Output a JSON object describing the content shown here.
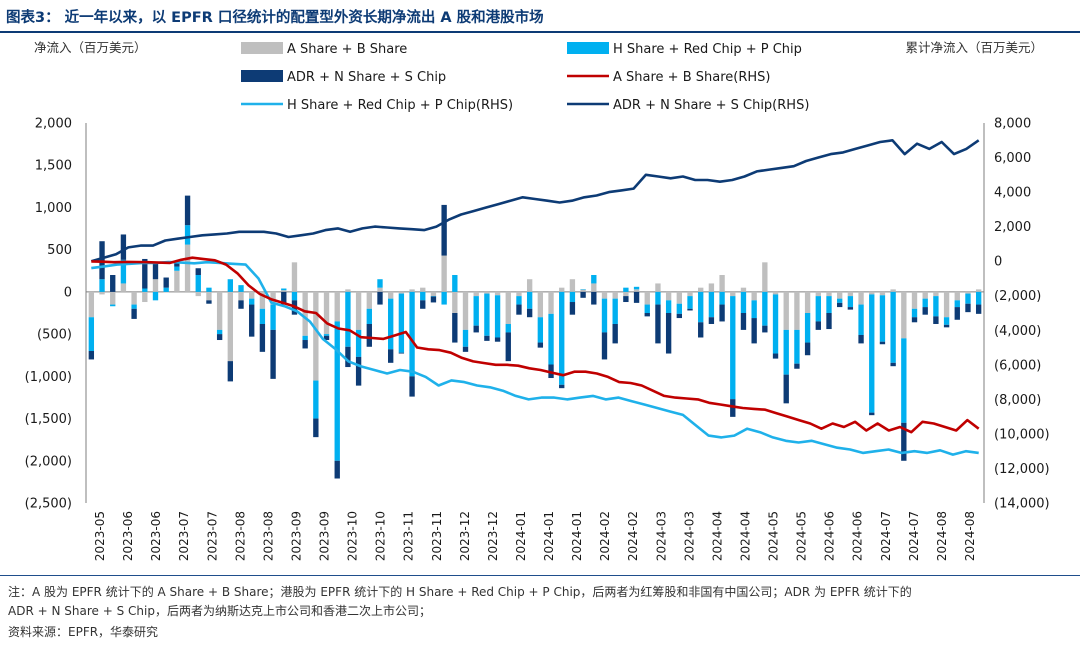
{
  "title": "图表3： 近一年以来，以 EPFR 口径统计的配置型外资长期净流出 A 股和港股市场",
  "footnote_line1": "注：A 股为 EPFR 统计下的 A Share + B Share；港股为 EPFR 统计下的 H Share + Red Chip + P Chip，后两者为红筹股和非国有中国公司；ADR 为 EPFR 统计下的",
  "footnote_line2": "ADR + N Share + S Chip，后两者为纳斯达克上市公司和香港二次上市公司；",
  "source": "资料来源：EPFR，华泰研究",
  "chart_data": {
    "type": "bar+line",
    "ylabel": "净流入（百万美元）",
    "y2label": "累计净流入（百万美元）",
    "ylim": [
      -2500,
      2000
    ],
    "y2lim": [
      -14000,
      8000
    ],
    "yticks": [
      "2,000",
      "1,500",
      "1,000",
      "500",
      "0",
      "(500)",
      "(1,000)",
      "(1,500)",
      "(2,000)",
      "(2,500)"
    ],
    "y2ticks": [
      "8,000",
      "6,000",
      "4,000",
      "2,000",
      "0",
      "(2,000)",
      "(4,000)",
      "(6,000)",
      "(8,000)",
      "(10,000)",
      "(12,000)",
      "(14,000)"
    ],
    "xticks": [
      "2023-05",
      "2023-06",
      "2023-06",
      "2023-07",
      "2023-07",
      "2023-08",
      "2023-08",
      "2023-09",
      "2023-09",
      "2023-10",
      "2023-10",
      "2023-11",
      "2023-11",
      "2023-12",
      "2023-12",
      "2024-01",
      "2024-01",
      "2024-01",
      "2024-02",
      "2024-02",
      "2024-03",
      "2024-03",
      "2024-04",
      "2024-04",
      "2024-05",
      "2024-05",
      "2024-06",
      "2024-06",
      "2024-07",
      "2024-07",
      "2024-08",
      "2024-08"
    ],
    "legend": [
      {
        "label": "A Share + B Share",
        "kind": "bar",
        "color": "#bfbfbf"
      },
      {
        "label": "H Share + Red Chip + P Chip",
        "kind": "bar",
        "color": "#00b0f0"
      },
      {
        "label": "ADR + N Share + S Chip",
        "kind": "bar",
        "color": "#0d3b75"
      },
      {
        "label": "A Share + B Share(RHS)",
        "kind": "line",
        "color": "#c00000"
      },
      {
        "label": "H Share + Red Chip + P Chip(RHS)",
        "kind": "line",
        "color": "#1fb1ea"
      },
      {
        "label": "ADR + N Share + S Chip(RHS)",
        "kind": "line",
        "color": "#0d3b75"
      }
    ],
    "bars_a": [
      -300,
      -30,
      -150,
      100,
      -150,
      -120,
      150,
      0,
      250,
      560,
      -50,
      -100,
      -450,
      -820,
      -100,
      -80,
      -200,
      -150,
      20,
      350,
      -520,
      -1050,
      -500,
      -350,
      30,
      -450,
      -200,
      50,
      -80,
      -20,
      30,
      50,
      -50,
      430,
      -250,
      -450,
      -50,
      -20,
      -40,
      -380,
      -50,
      150,
      -300,
      -260,
      50,
      150,
      30,
      100,
      -80,
      -80,
      -50,
      30,
      -150,
      100,
      -100,
      -140,
      -50,
      50,
      100,
      200,
      -50,
      50,
      -100,
      350,
      -30,
      -450,
      -450,
      -250,
      -50,
      -50,
      -80,
      -50,
      -150,
      -30,
      -40,
      30,
      -550,
      -200,
      -80,
      -50,
      -300,
      -100,
      -20,
      30
    ],
    "bars_h": [
      -400,
      150,
      -20,
      280,
      -50,
      40,
      -100,
      50,
      50,
      230,
      200,
      50,
      -50,
      150,
      80,
      -70,
      -180,
      -300,
      20,
      -100,
      -50,
      -450,
      -20,
      -1650,
      -650,
      -320,
      -180,
      100,
      -600,
      -700,
      -1000,
      -100,
      -5,
      -150,
      200,
      -200,
      -350,
      -500,
      -500,
      -100,
      -100,
      -200,
      -300,
      -600,
      -1100,
      -120,
      0,
      100,
      -400,
      -300,
      50,
      30,
      -100,
      -150,
      -150,
      -120,
      -150,
      -360,
      -300,
      -150,
      -1220,
      -250,
      -210,
      -400,
      -700,
      -530,
      -400,
      -350,
      -300,
      -200,
      -50,
      -130,
      -360,
      -1400,
      -550,
      -840,
      -1000,
      -100,
      -100,
      -240,
      -90,
      -80,
      -120,
      -150
    ],
    "bars_adr": [
      -100,
      450,
      200,
      300,
      -120,
      350,
      210,
      120,
      50,
      350,
      80,
      -40,
      -70,
      -240,
      -100,
      -380,
      -330,
      -580,
      -150,
      -170,
      -100,
      -220,
      -50,
      -210,
      -240,
      -340,
      -270,
      -150,
      -160,
      -10,
      -240,
      -100,
      -70,
      600,
      -350,
      -60,
      -80,
      -60,
      -50,
      -340,
      -120,
      -100,
      -60,
      -160,
      -40,
      -150,
      -70,
      -150,
      -320,
      -230,
      -70,
      -130,
      -40,
      -460,
      -480,
      -50,
      -20,
      -180,
      -80,
      -200,
      -210,
      -200,
      -300,
      -80,
      -60,
      -340,
      -60,
      -150,
      -100,
      -190,
      -50,
      -30,
      -100,
      -30,
      -30,
      -40,
      -450,
      -60,
      -90,
      -90,
      -30,
      -150,
      -100,
      -110
    ],
    "line_a": [
      -10,
      -30,
      -60,
      -40,
      -50,
      -60,
      -80,
      -100,
      80,
      200,
      120,
      50,
      -200,
      -700,
      -1400,
      -1900,
      -2200,
      -2400,
      -2600,
      -2900,
      -3000,
      -3600,
      -3900,
      -4000,
      -4400,
      -4450,
      -4500,
      -4300,
      -4100,
      -5000,
      -5100,
      -5150,
      -5300,
      -5600,
      -5800,
      -5900,
      -6000,
      -6000,
      -6050,
      -6200,
      -6300,
      -6450,
      -6600,
      -6400,
      -6400,
      -6500,
      -6700,
      -7000,
      -7050,
      -7200,
      -7500,
      -7800,
      -7900,
      -7950,
      -8000,
      -8200,
      -8300,
      -8400,
      -8500,
      -8550,
      -8600,
      -8800,
      -9000,
      -9200,
      -9400,
      -9700,
      -9400,
      -9600,
      -9300,
      -9800,
      -9400,
      -9800,
      -9600,
      -9900,
      -9300,
      -9400,
      -9600,
      -9800,
      -9200,
      -9700
    ],
    "line_h": [
      -400,
      -300,
      -200,
      -150,
      -100,
      -100,
      -50,
      -80,
      -120,
      -60,
      -100,
      -150,
      -200,
      -1000,
      -2400,
      -2600,
      -2900,
      -3500,
      -4500,
      -5100,
      -5800,
      -6100,
      -6300,
      -6500,
      -6300,
      -6400,
      -6700,
      -7200,
      -6900,
      -7000,
      -7200,
      -7300,
      -7500,
      -7800,
      -8000,
      -7900,
      -7900,
      -8000,
      -7900,
      -7800,
      -8000,
      -7900,
      -8100,
      -8300,
      -8500,
      -8700,
      -8900,
      -9500,
      -10100,
      -10200,
      -10100,
      -9700,
      -9900,
      -10200,
      -10400,
      -10500,
      -10400,
      -10600,
      -10800,
      -10900,
      -11100,
      -11000,
      -10900,
      -11100,
      -11000,
      -11100,
      -10950,
      -11200,
      -11000,
      -11100
    ],
    "line_adr": [
      0,
      200,
      400,
      800,
      900,
      900,
      1200,
      1300,
      1400,
      1500,
      1550,
      1600,
      1700,
      1700,
      1700,
      1600,
      1400,
      1500,
      1600,
      1800,
      1900,
      1700,
      1900,
      2000,
      1950,
      1900,
      1850,
      1800,
      2000,
      2400,
      2700,
      2900,
      3100,
      3300,
      3500,
      3700,
      3600,
      3500,
      3400,
      3500,
      3700,
      3800,
      4000,
      4100,
      4200,
      5000,
      4900,
      4800,
      4900,
      4700,
      4700,
      4600,
      4700,
      4900,
      5200,
      5300,
      5400,
      5500,
      5800,
      6000,
      6200,
      6300,
      6500,
      6700,
      6900,
      7000,
      6200,
      6800,
      6500,
      6900,
      6200,
      6500,
      7000
    ]
  }
}
